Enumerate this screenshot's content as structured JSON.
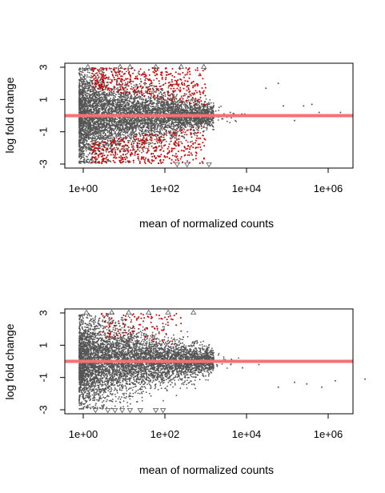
{
  "chart_data": [
    {
      "type": "scatter",
      "id": "top",
      "xlabel": "mean of normalized counts",
      "ylabel": "log fold change",
      "xscale": "log10",
      "xlim": [
        0.08,
        400000000
      ],
      "ylim": [
        -3.1,
        3.1
      ],
      "x_ticks": [
        1,
        100,
        10000,
        1000000
      ],
      "x_tick_labels": [
        "1e+00",
        "1e+02",
        "1e+04",
        "1e+06"
      ],
      "y_ticks": [
        3,
        1,
        -1,
        -3
      ],
      "y_tick_labels": [
        "3",
        "1",
        "-1",
        "-3"
      ],
      "reference_line": {
        "y": 0,
        "color": "#f87171"
      },
      "point_colors": {
        "not_significant": "#555555",
        "significant": "#cc0000"
      },
      "series": [
        {
          "name": "not_significant",
          "color": "#555555",
          "count": 6000
        },
        {
          "name": "significant",
          "color": "#cc0000",
          "count": 850
        }
      ],
      "outliers_top": [
        1.3,
        8,
        14,
        60,
        250,
        900
      ],
      "outliers_bottom": [
        200,
        350,
        1200
      ],
      "high_mean_points": [
        [
          2500,
          -0.2
        ],
        [
          4000,
          0.2
        ],
        [
          9000,
          0.1
        ],
        [
          30000,
          1.7
        ],
        [
          60000,
          2.0
        ],
        [
          80000,
          0.6
        ],
        [
          150000,
          -0.3
        ],
        [
          250000,
          0.6
        ],
        [
          400000,
          0.7
        ],
        [
          600000,
          0.2
        ],
        [
          2000000,
          0.2
        ]
      ]
    },
    {
      "type": "scatter",
      "id": "bottom",
      "xlabel": "mean of normalized counts",
      "ylabel": "log fold change",
      "xscale": "log10",
      "xlim": [
        0.08,
        400000000
      ],
      "ylim": [
        -3.1,
        3.1
      ],
      "x_ticks": [
        1,
        100,
        10000,
        1000000
      ],
      "x_tick_labels": [
        "1e+00",
        "1e+02",
        "1e+04",
        "1e+06"
      ],
      "y_ticks": [
        3,
        1,
        -1,
        -3
      ],
      "y_tick_labels": [
        "3",
        "1",
        "-1",
        "-3"
      ],
      "reference_line": {
        "y": 0,
        "color": "#f87171"
      },
      "point_colors": {
        "not_significant": "#555555",
        "significant": "#cc0000"
      },
      "series": [
        {
          "name": "not_significant",
          "color": "#555555",
          "count": 6000
        },
        {
          "name": "significant",
          "color": "#cc0000",
          "count": 110
        }
      ],
      "outliers_top": [
        1.2,
        5,
        13,
        40,
        120,
        500
      ],
      "outliers_bottom": [
        2,
        4,
        6,
        9,
        14,
        25,
        60,
        90
      ]
    }
  ]
}
